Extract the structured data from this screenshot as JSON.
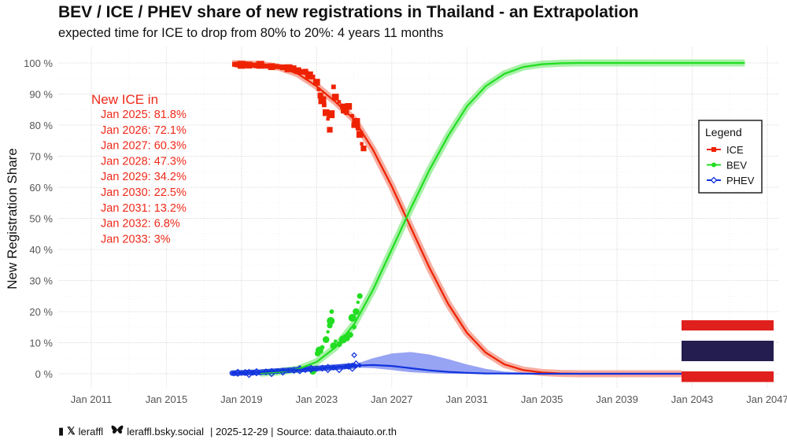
{
  "chart_data": {
    "type": "scatter",
    "title": "BEV / ICE / PHEV share of new registrations in Thailand - an Extrapolation",
    "subtitle": "expected time for ICE to drop from 80% to 20%: 4 years 11 months",
    "xlabel": "",
    "ylabel": "New Registration Share",
    "xlim": [
      2009.0,
      2047.5
    ],
    "ylim": [
      -4,
      104
    ],
    "x_ticks": [
      {
        "value": 2011,
        "label": "Jan 2011"
      },
      {
        "value": 2015,
        "label": "Jan 2015"
      },
      {
        "value": 2019,
        "label": "Jan 2019"
      },
      {
        "value": 2023,
        "label": "Jan 2023"
      },
      {
        "value": 2027,
        "label": "Jan 2027"
      },
      {
        "value": 2031,
        "label": "Jan 2031"
      },
      {
        "value": 2035,
        "label": "Jan 2035"
      },
      {
        "value": 2039,
        "label": "Jan 2039"
      },
      {
        "value": 2043,
        "label": "Jan 2043"
      },
      {
        "value": 2047,
        "label": "Jan 2047"
      }
    ],
    "y_ticks": [
      {
        "value": 0,
        "label": "0 %"
      },
      {
        "value": 10,
        "label": "10 %"
      },
      {
        "value": 20,
        "label": "20 %"
      },
      {
        "value": 30,
        "label": "30 %"
      },
      {
        "value": 40,
        "label": "40 %"
      },
      {
        "value": 50,
        "label": "50 %"
      },
      {
        "value": 60,
        "label": "60 %"
      },
      {
        "value": 70,
        "label": "70 %"
      },
      {
        "value": 80,
        "label": "80 %"
      },
      {
        "value": 90,
        "label": "90 %"
      },
      {
        "value": 100,
        "label": "100 %"
      }
    ],
    "grid": true,
    "legend": {
      "title": "Legend",
      "position": "right",
      "entries": [
        {
          "name": "ICE",
          "color": "#ee2200",
          "marker": "square"
        },
        {
          "name": "BEV",
          "color": "#22dd22",
          "marker": "circle"
        },
        {
          "name": "PHEV",
          "color": "#1133dd",
          "marker": "diamond"
        }
      ]
    },
    "series": [
      {
        "name": "ICE",
        "color": "#ee2200",
        "band_color": "#f4a090",
        "fit": {
          "x": [
            2018.5,
            2020,
            2021,
            2022,
            2023,
            2024,
            2025,
            2026,
            2027,
            2028,
            2029,
            2030,
            2031,
            2032,
            2033,
            2034,
            2035,
            2036,
            2037,
            2043
          ],
          "y": [
            99.8,
            99.5,
            98.6,
            96.5,
            92.5,
            87.5,
            81.8,
            72.1,
            60.3,
            47.3,
            34.2,
            22.5,
            13.2,
            6.8,
            3.0,
            1.2,
            0.4,
            0.1,
            0.0,
            0.0
          ]
        },
        "points": [
          {
            "x": 2018.6,
            "y": 99.6
          },
          {
            "x": 2018.8,
            "y": 99.5
          },
          {
            "x": 2019.0,
            "y": 99.4
          },
          {
            "x": 2019.2,
            "y": 99.7
          },
          {
            "x": 2019.4,
            "y": 99.3
          },
          {
            "x": 2019.6,
            "y": 99.5
          },
          {
            "x": 2019.8,
            "y": 99.2
          },
          {
            "x": 2020.0,
            "y": 99.4
          },
          {
            "x": 2020.3,
            "y": 99.0
          },
          {
            "x": 2020.6,
            "y": 98.8
          },
          {
            "x": 2020.9,
            "y": 99.1
          },
          {
            "x": 2021.2,
            "y": 98.6
          },
          {
            "x": 2021.5,
            "y": 98.3
          },
          {
            "x": 2021.8,
            "y": 98.5
          },
          {
            "x": 2022.0,
            "y": 97.5
          },
          {
            "x": 2022.2,
            "y": 96.8
          },
          {
            "x": 2022.4,
            "y": 97.2
          },
          {
            "x": 2022.6,
            "y": 96.0
          },
          {
            "x": 2022.8,
            "y": 95.5
          },
          {
            "x": 2023.0,
            "y": 93.8
          },
          {
            "x": 2023.1,
            "y": 91.5
          },
          {
            "x": 2023.2,
            "y": 89.5
          },
          {
            "x": 2023.3,
            "y": 88.0
          },
          {
            "x": 2023.4,
            "y": 86.5
          },
          {
            "x": 2023.5,
            "y": 84.0
          },
          {
            "x": 2023.6,
            "y": 82.0
          },
          {
            "x": 2023.7,
            "y": 78.5
          },
          {
            "x": 2023.75,
            "y": 83.5
          },
          {
            "x": 2023.9,
            "y": 92.3
          },
          {
            "x": 2024.0,
            "y": 89.0
          },
          {
            "x": 2024.2,
            "y": 87.5
          },
          {
            "x": 2024.4,
            "y": 86.0
          },
          {
            "x": 2024.5,
            "y": 85.0
          },
          {
            "x": 2024.6,
            "y": 84.0
          },
          {
            "x": 2024.7,
            "y": 86.0
          },
          {
            "x": 2024.9,
            "y": 83.0
          },
          {
            "x": 2025.0,
            "y": 80.0
          },
          {
            "x": 2025.1,
            "y": 81.0
          },
          {
            "x": 2025.2,
            "y": 79.0
          },
          {
            "x": 2025.3,
            "y": 77.0
          },
          {
            "x": 2025.4,
            "y": 74.0
          },
          {
            "x": 2025.5,
            "y": 72.5
          }
        ]
      },
      {
        "name": "BEV",
        "color": "#22dd22",
        "band_color": "#99ee99",
        "fit": {
          "x": [
            2020,
            2021,
            2022,
            2023,
            2024,
            2025,
            2026,
            2027,
            2028,
            2029,
            2030,
            2031,
            2032,
            2033,
            2034,
            2035,
            2036,
            2037,
            2040,
            2045.8
          ],
          "y": [
            0.2,
            0.6,
            1.5,
            3.8,
            8.5,
            16.0,
            27.0,
            40.0,
            53.0,
            65.5,
            76.5,
            86.0,
            92.5,
            96.5,
            98.7,
            99.6,
            99.9,
            100.0,
            100.0,
            100.0
          ]
        },
        "points": [
          {
            "x": 2022.8,
            "y": 0.8
          },
          {
            "x": 2023.0,
            "y": 2.0
          },
          {
            "x": 2023.05,
            "y": 6.5
          },
          {
            "x": 2023.15,
            "y": 7.5
          },
          {
            "x": 2023.3,
            "y": 8.5
          },
          {
            "x": 2023.5,
            "y": 11.0
          },
          {
            "x": 2023.6,
            "y": 13.5
          },
          {
            "x": 2023.7,
            "y": 15.5
          },
          {
            "x": 2023.75,
            "y": 17.0
          },
          {
            "x": 2023.8,
            "y": 20.0
          },
          {
            "x": 2023.9,
            "y": 9.0
          },
          {
            "x": 2024.0,
            "y": 10.5
          },
          {
            "x": 2024.2,
            "y": 9.5
          },
          {
            "x": 2024.4,
            "y": 11.0
          },
          {
            "x": 2024.5,
            "y": 12.0
          },
          {
            "x": 2024.6,
            "y": 11.5
          },
          {
            "x": 2024.7,
            "y": 13.0
          },
          {
            "x": 2024.8,
            "y": 12.5
          },
          {
            "x": 2024.9,
            "y": 18.0
          },
          {
            "x": 2025.0,
            "y": 15.0
          },
          {
            "x": 2025.1,
            "y": 20.0
          },
          {
            "x": 2025.2,
            "y": 23.0
          },
          {
            "x": 2025.3,
            "y": 25.0
          }
        ]
      },
      {
        "name": "PHEV",
        "color": "#1133dd",
        "band_color": "#8c99f2",
        "fit": {
          "x": [
            2018.5,
            2020,
            2021,
            2022,
            2023,
            2024,
            2025,
            2026,
            2027,
            2028,
            2029,
            2030,
            2031,
            2032,
            2035,
            2040,
            2043
          ],
          "y": [
            0.2,
            0.5,
            0.9,
            1.3,
            1.7,
            2.1,
            2.6,
            2.8,
            2.5,
            1.8,
            1.1,
            0.6,
            0.3,
            0.1,
            0.0,
            0.0,
            0.0
          ]
        },
        "band": {
          "x": [
            2025,
            2026,
            2027,
            2028,
            2029,
            2030,
            2031,
            2032,
            2033,
            2035
          ],
          "upper": [
            3.0,
            5.0,
            6.5,
            7.0,
            6.2,
            4.7,
            3.0,
            1.6,
            0.7,
            0.1
          ],
          "lower": [
            2.0,
            1.8,
            1.2,
            0.5,
            0.2,
            0.0,
            0.0,
            0.0,
            0.0,
            0.0
          ]
        },
        "points": [
          {
            "x": 2018.6,
            "y": 0.1
          },
          {
            "x": 2018.8,
            "y": 0.3
          },
          {
            "x": 2019.0,
            "y": 0.2
          },
          {
            "x": 2019.2,
            "y": 0.4
          },
          {
            "x": 2019.4,
            "y": 0.1
          },
          {
            "x": 2019.6,
            "y": 0.3
          },
          {
            "x": 2019.8,
            "y": 0.5
          },
          {
            "x": 2020.0,
            "y": 0.2
          },
          {
            "x": 2020.3,
            "y": 0.6
          },
          {
            "x": 2020.6,
            "y": 0.4
          },
          {
            "x": 2020.9,
            "y": 0.8
          },
          {
            "x": 2021.2,
            "y": 0.7
          },
          {
            "x": 2021.5,
            "y": 1.0
          },
          {
            "x": 2021.8,
            "y": 1.1
          },
          {
            "x": 2022.1,
            "y": 1.3
          },
          {
            "x": 2022.4,
            "y": 1.2
          },
          {
            "x": 2022.7,
            "y": 1.6
          },
          {
            "x": 2023.0,
            "y": 1.4
          },
          {
            "x": 2023.3,
            "y": 1.8
          },
          {
            "x": 2023.6,
            "y": 1.7
          },
          {
            "x": 2023.9,
            "y": 2.0
          },
          {
            "x": 2024.2,
            "y": 1.5
          },
          {
            "x": 2024.5,
            "y": 2.2
          },
          {
            "x": 2024.7,
            "y": 2.4
          },
          {
            "x": 2024.9,
            "y": 2.1
          },
          {
            "x": 2025.0,
            "y": 6.0
          },
          {
            "x": 2025.1,
            "y": 3.0
          },
          {
            "x": 2025.3,
            "y": 2.7
          }
        ]
      }
    ],
    "annotations": {
      "heading": "New ICE in",
      "lines": [
        "Jan 2025: 81.8%",
        "Jan 2026: 72.1%",
        "Jan 2027: 60.3%",
        "Jan 2028: 47.3%",
        "Jan 2029: 34.2%",
        "Jan 2030: 22.5%",
        "Jan 2031: 13.2%",
        "Jan 2032: 6.8%",
        "Jan 2033: 3%"
      ]
    },
    "flag": {
      "name": "Thailand",
      "colors": [
        "#e0201c",
        "#ffffff",
        "#241d4f",
        "#ffffff",
        "#e0201c"
      ]
    }
  },
  "footer": {
    "x_handle": "leraffl",
    "bsky_handle": "leraffl.bsky.social",
    "date": "| 2025-12-29 |",
    "source": "Source: data.thaiauto.or.th"
  }
}
